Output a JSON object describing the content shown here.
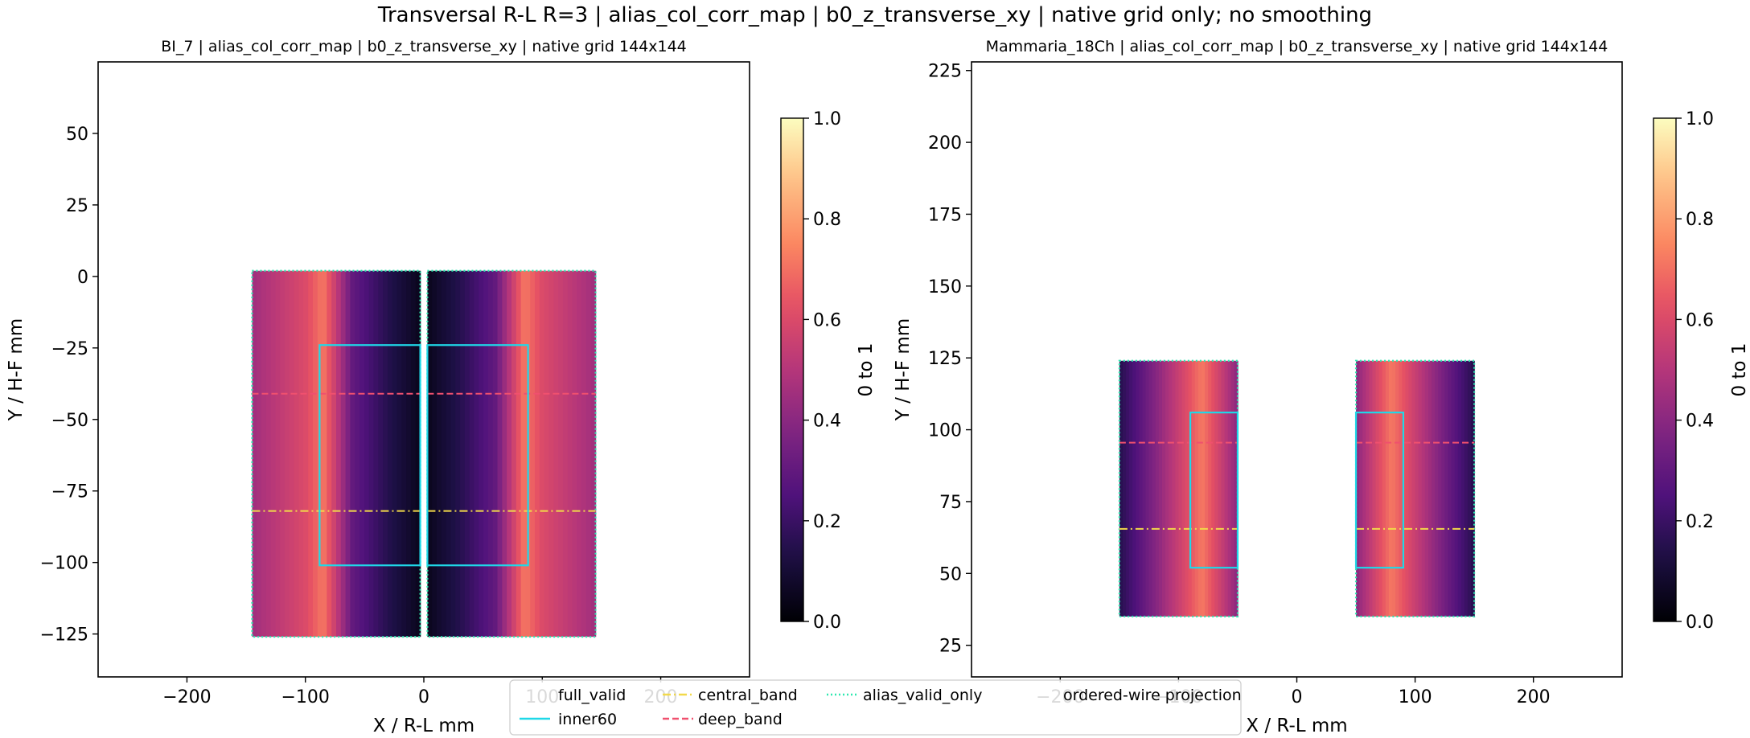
{
  "figure": {
    "title": "Transversal R-L R=3 | alias_col_corr_map | b0_z_transverse_xy | native grid only; no smoothing"
  },
  "chart_data": [
    {
      "type": "heatmap",
      "title": "BI_7 | alias_col_corr_map | b0_z_transverse_xy | native grid 144x144",
      "xlabel": "X / R-L mm",
      "ylabel": "Y / H-F mm",
      "xlim": [
        -275,
        275
      ],
      "ylim": [
        -140,
        75
      ],
      "xticks": [
        -200,
        -100,
        0,
        100,
        200
      ],
      "xtick_labels": [
        "−200",
        "−100",
        "0",
        "100",
        "200"
      ],
      "yticks": [
        50,
        25,
        0,
        -25,
        -50,
        -75,
        -100,
        -125
      ],
      "ytick_labels": [
        "50",
        "25",
        "0",
        "−25",
        "−50",
        "−75",
        "−100",
        "−125"
      ],
      "colormap": "magma",
      "colorbar": {
        "label": "0 to 1",
        "range": [
          0,
          1
        ],
        "ticks": [
          "0.0",
          "0.2",
          "0.4",
          "0.6",
          "0.8",
          "1.0"
        ]
      },
      "regions": [
        {
          "name": "full_valid",
          "x": [
            -145,
            -3
          ],
          "y": [
            -126,
            2
          ]
        },
        {
          "name": "full_valid",
          "x": [
            3,
            145
          ],
          "y": [
            -126,
            2
          ]
        }
      ],
      "value_profile": {
        "x": [
          -145,
          -100,
          -85,
          -60,
          -30,
          -3,
          3,
          30,
          60,
          85,
          100,
          145
        ],
        "value": [
          0.45,
          0.6,
          0.72,
          0.3,
          0.15,
          0.05,
          0.05,
          0.15,
          0.3,
          0.72,
          0.6,
          0.45
        ]
      },
      "overlays": {
        "inner60": [
          {
            "x": [
              -88,
              -3
            ],
            "y": [
              -101,
              -24
            ]
          },
          {
            "x": [
              3,
              88
            ],
            "y": [
              -101,
              -24
            ]
          }
        ],
        "central_band_y": -82,
        "deep_band_y": -41
      }
    },
    {
      "type": "heatmap",
      "title": "Mammaria_18Ch | alias_col_corr_map | b0_z_transverse_xy | native grid 144x144",
      "xlabel": "X / R-L mm",
      "ylabel": "Y / H-F mm",
      "xlim": [
        -275,
        275
      ],
      "ylim": [
        14,
        228
      ],
      "xticks": [
        -200,
        -100,
        0,
        100,
        200
      ],
      "xtick_labels": [
        "−200",
        "−100",
        "0",
        "100",
        "200"
      ],
      "yticks": [
        225,
        200,
        175,
        150,
        125,
        100,
        75,
        50,
        25
      ],
      "ytick_labels": [
        "225",
        "200",
        "175",
        "150",
        "125",
        "100",
        "75",
        "50",
        "25"
      ],
      "colormap": "magma",
      "colorbar": {
        "label": "0 to 1",
        "range": [
          0,
          1
        ],
        "ticks": [
          "0.0",
          "0.2",
          "0.4",
          "0.6",
          "0.8",
          "1.0"
        ]
      },
      "regions": [
        {
          "name": "full_valid",
          "x": [
            -150,
            -50
          ],
          "y": [
            35,
            124
          ]
        },
        {
          "name": "full_valid",
          "x": [
            50,
            150
          ],
          "y": [
            35,
            124
          ]
        }
      ],
      "value_profile": {
        "x": [
          -150,
          -130,
          -100,
          -80,
          -50,
          50,
          80,
          100,
          130,
          150
        ],
        "value": [
          0.15,
          0.3,
          0.55,
          0.72,
          0.4,
          0.4,
          0.72,
          0.55,
          0.3,
          0.15
        ]
      },
      "overlays": {
        "inner60": [
          {
            "x": [
              -90,
              -50
            ],
            "y": [
              52,
              106
            ]
          },
          {
            "x": [
              50,
              90
            ],
            "y": [
              52,
              106
            ]
          }
        ],
        "central_band_y": 65.5,
        "deep_band_y": 95.5
      }
    }
  ],
  "legend": {
    "placement": "bottom-center",
    "entries": [
      {
        "label": "full_valid",
        "style": "none"
      },
      {
        "label": "inner60",
        "style": "solid",
        "color": "#1fd8e8"
      },
      {
        "label": "central_band",
        "style": "dashdot",
        "color": "#f2d94a"
      },
      {
        "label": "deep_band",
        "style": "dashed",
        "color": "#f0506e"
      },
      {
        "label": "alias_valid_only",
        "style": "dotted",
        "color": "#2ee8b0"
      },
      {
        "label": "ordered-wire projection",
        "style": "none"
      }
    ]
  },
  "colors": {
    "inner60": "#1fd8e8",
    "central_band": "#f2d94a",
    "deep_band": "#f0506e",
    "alias_valid_only": "#2ee8b0"
  }
}
